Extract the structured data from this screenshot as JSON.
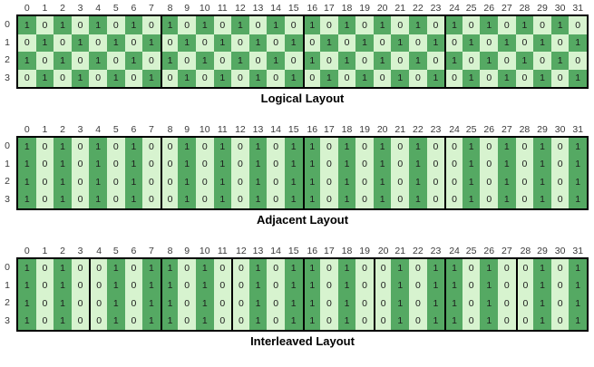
{
  "colors": {
    "one_fill": "#55A963",
    "zero_fill": "#D7F3CF",
    "block_border": "#000000",
    "digit_text": "#1C1C1C",
    "header_text": "#3A3A3A"
  },
  "col_headers": [
    "0",
    "1",
    "2",
    "3",
    "4",
    "5",
    "6",
    "7",
    "8",
    "9",
    "10",
    "11",
    "12",
    "13",
    "14",
    "15",
    "16",
    "17",
    "18",
    "19",
    "20",
    "21",
    "22",
    "23",
    "24",
    "25",
    "26",
    "27",
    "28",
    "29",
    "30",
    "31"
  ],
  "row_headers": [
    "0",
    "1",
    "2",
    "3"
  ],
  "grids": [
    {
      "caption": "Logical Layout",
      "block_size": 8,
      "rows": [
        [
          1,
          0,
          1,
          0,
          1,
          0,
          1,
          0,
          1,
          0,
          1,
          0,
          1,
          0,
          1,
          0,
          1,
          0,
          1,
          0,
          1,
          0,
          1,
          0,
          1,
          0,
          1,
          0,
          1,
          0,
          1,
          0
        ],
        [
          0,
          1,
          0,
          1,
          0,
          1,
          0,
          1,
          0,
          1,
          0,
          1,
          0,
          1,
          0,
          1,
          0,
          1,
          0,
          1,
          0,
          1,
          0,
          1,
          0,
          1,
          0,
          1,
          0,
          1,
          0,
          1
        ],
        [
          1,
          0,
          1,
          0,
          1,
          0,
          1,
          0,
          1,
          0,
          1,
          0,
          1,
          0,
          1,
          0,
          1,
          0,
          1,
          0,
          1,
          0,
          1,
          0,
          1,
          0,
          1,
          0,
          1,
          0,
          1,
          0
        ],
        [
          0,
          1,
          0,
          1,
          0,
          1,
          0,
          1,
          0,
          1,
          0,
          1,
          0,
          1,
          0,
          1,
          0,
          1,
          0,
          1,
          0,
          1,
          0,
          1,
          0,
          1,
          0,
          1,
          0,
          1,
          0,
          1
        ]
      ]
    },
    {
      "caption": "Adjacent Layout",
      "block_size": 8,
      "rows": [
        [
          1,
          0,
          1,
          0,
          1,
          0,
          1,
          0,
          0,
          1,
          0,
          1,
          0,
          1,
          0,
          1,
          1,
          0,
          1,
          0,
          1,
          0,
          1,
          0,
          0,
          1,
          0,
          1,
          0,
          1,
          0,
          1
        ],
        [
          1,
          0,
          1,
          0,
          1,
          0,
          1,
          0,
          0,
          1,
          0,
          1,
          0,
          1,
          0,
          1,
          1,
          0,
          1,
          0,
          1,
          0,
          1,
          0,
          0,
          1,
          0,
          1,
          0,
          1,
          0,
          1
        ],
        [
          1,
          0,
          1,
          0,
          1,
          0,
          1,
          0,
          0,
          1,
          0,
          1,
          0,
          1,
          0,
          1,
          1,
          0,
          1,
          0,
          1,
          0,
          1,
          0,
          0,
          1,
          0,
          1,
          0,
          1,
          0,
          1
        ],
        [
          1,
          0,
          1,
          0,
          1,
          0,
          1,
          0,
          0,
          1,
          0,
          1,
          0,
          1,
          0,
          1,
          1,
          0,
          1,
          0,
          1,
          0,
          1,
          0,
          0,
          1,
          0,
          1,
          0,
          1,
          0,
          1
        ]
      ]
    },
    {
      "caption": "Interleaved Layout",
      "block_size": 4,
      "rows": [
        [
          1,
          0,
          1,
          0,
          0,
          1,
          0,
          1,
          1,
          0,
          1,
          0,
          0,
          1,
          0,
          1,
          1,
          0,
          1,
          0,
          0,
          1,
          0,
          1,
          1,
          0,
          1,
          0,
          0,
          1,
          0,
          1
        ],
        [
          1,
          0,
          1,
          0,
          0,
          1,
          0,
          1,
          1,
          0,
          1,
          0,
          0,
          1,
          0,
          1,
          1,
          0,
          1,
          0,
          0,
          1,
          0,
          1,
          1,
          0,
          1,
          0,
          0,
          1,
          0,
          1
        ],
        [
          1,
          0,
          1,
          0,
          0,
          1,
          0,
          1,
          1,
          0,
          1,
          0,
          0,
          1,
          0,
          1,
          1,
          0,
          1,
          0,
          0,
          1,
          0,
          1,
          1,
          0,
          1,
          0,
          0,
          1,
          0,
          1
        ],
        [
          1,
          0,
          1,
          0,
          0,
          1,
          0,
          1,
          1,
          0,
          1,
          0,
          0,
          1,
          0,
          1,
          1,
          0,
          1,
          0,
          0,
          1,
          0,
          1,
          1,
          0,
          1,
          0,
          0,
          1,
          0,
          1
        ]
      ]
    }
  ]
}
